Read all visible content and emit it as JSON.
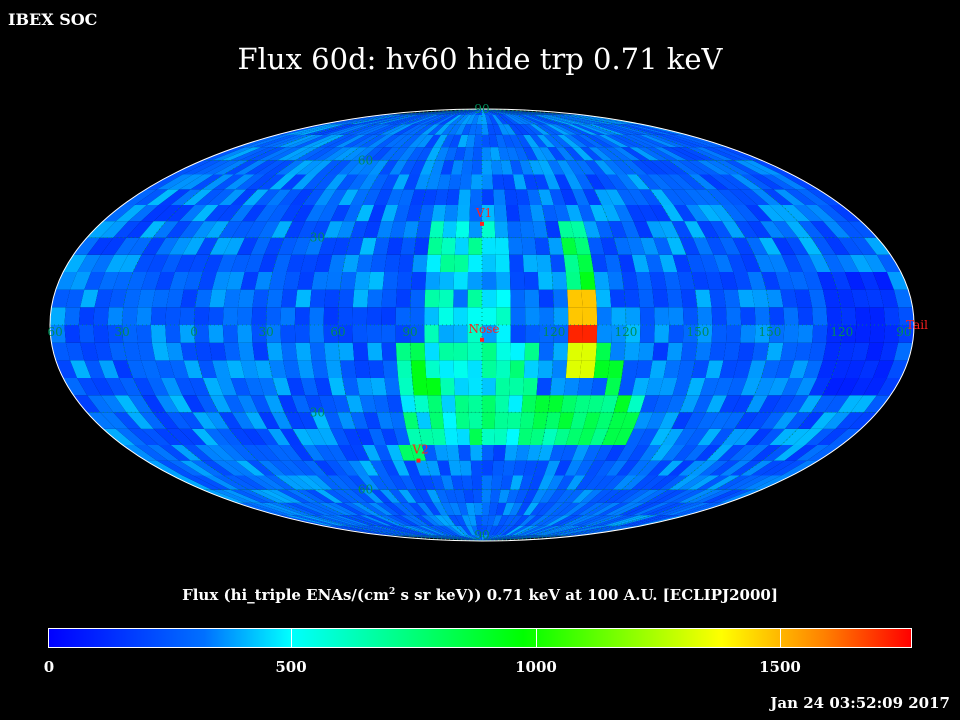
{
  "corner_label": "IBEX SOC",
  "title": "Flux 60d: hv60 hide trp 0.71 keV",
  "colorbar": {
    "title_pre": "Flux (hi_triple ENAs/(cm",
    "title_sup": "2",
    "title_post": " s sr keV)) 0.71 keV at 100 A.U. [ECLIPJ2000]",
    "ticks": [
      "0",
      "500",
      "1000",
      "1500"
    ],
    "range": [
      0,
      1800
    ],
    "colors": [
      "#0000ff",
      "#0070ff",
      "#00ffff",
      "#00ff00",
      "#ffff00",
      "#ff8000",
      "#ff0000"
    ]
  },
  "timestamp": "Jan 24 03:52:09 2017",
  "map": {
    "projection": "Mollweide (ecliptic J2000)",
    "grid_color": "#008b5a",
    "marker_color": "#ff2020",
    "lat_labels": [
      {
        "text": "60",
        "lat": 60
      },
      {
        "text": "30",
        "lat": 30
      },
      {
        "text": "30",
        "lat": -30
      },
      {
        "text": "60",
        "lat": -60
      }
    ],
    "pole_labels": [
      {
        "text": "90",
        "lat": 90
      },
      {
        "text": "90",
        "lat": -90
      }
    ],
    "lon_labels": [
      "60",
      "30",
      "0",
      "30",
      "60",
      "90",
      "120",
      "120",
      "150",
      "150",
      "120",
      "90"
    ],
    "markers": [
      {
        "name": "V1",
        "lon": 0,
        "lat": 35
      },
      {
        "name": "Nose",
        "lon": 0,
        "lat": -5
      },
      {
        "name": "V2",
        "lon": -34,
        "lat": -48
      },
      {
        "name": "Tail",
        "lon": 180,
        "lat": 0
      }
    ]
  },
  "chart_data": {
    "type": "heatmap",
    "title": "Flux 60d: hv60 hide trp 0.71 keV",
    "colorbar_label": "Flux (hi_triple ENAs/(cm^2 s sr keV)) 0.71 keV at 100 A.U. [ECLIPJ2000]",
    "value_range": [
      0,
      1800
    ],
    "colorbar_ticks": [
      0,
      500,
      1000,
      1500
    ],
    "cells_note": "Per-pixel flux (6 deg bins, 0-1800) shown as a blue baseline with brighter features: ribbon arc near lon +40 to +110 (green to red), bright patches near V2 and south of Nose, low-flux strip near lon 150-170.",
    "features": [
      {
        "name": "Ribbon peak",
        "lon": 42,
        "lat": 0,
        "value": 1750
      },
      {
        "name": "Ribbon upper",
        "lon": 42,
        "lat": 5,
        "value": 1500
      },
      {
        "name": "Ribbon lower",
        "lon": 42,
        "lat": -10,
        "value": 1350
      },
      {
        "name": "South patch",
        "lon": -26,
        "lat": -20,
        "value": 950
      },
      {
        "name": "V2 patch",
        "lon": -34,
        "lat": -45,
        "value": 800
      },
      {
        "name": "Ribbon south arc",
        "lon": 65,
        "lat": -35,
        "value": 850
      },
      {
        "name": "Low flux strip",
        "lon": 160,
        "lat": 0,
        "value": 100
      }
    ]
  }
}
